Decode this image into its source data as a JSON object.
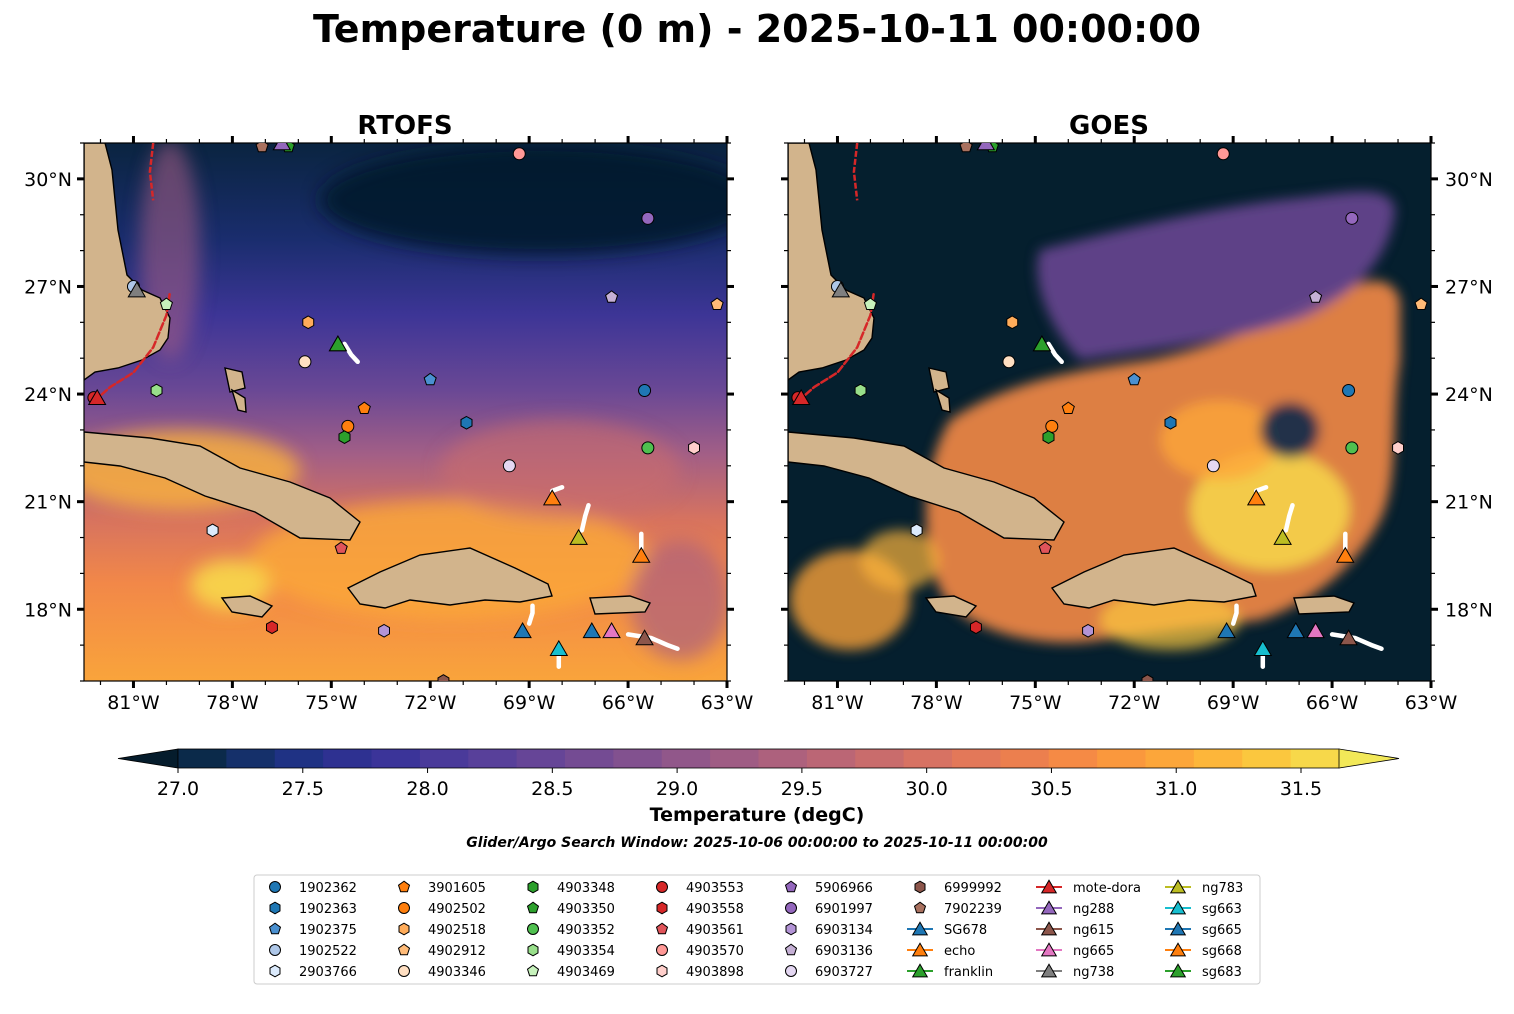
{
  "figure": {
    "title": "Temperature (0 m) - 2025-10-11 00:00:00",
    "search_window": "Glider/Argo Search Window: 2025-10-06 00:00:00 to 2025-10-11 00:00:00"
  },
  "chart_data": {
    "type": "heatmap",
    "title": "Temperature (0 m) - 2025-10-11 00:00:00",
    "panels": [
      {
        "title": "RTOFS"
      },
      {
        "title": "GOES"
      }
    ],
    "xlim": [
      -82.5,
      -63.0
    ],
    "ylim": [
      16.0,
      31.0
    ],
    "x_ticks": [
      -81,
      -78,
      -75,
      -72,
      -69,
      -66,
      -63
    ],
    "x_tick_labels": [
      "81°W",
      "78°W",
      "75°W",
      "72°W",
      "69°W",
      "66°W",
      "63°W"
    ],
    "y_ticks": [
      18,
      21,
      24,
      27,
      30
    ],
    "y_tick_labels": [
      "18°N",
      "21°N",
      "24°N",
      "27°N",
      "30°N"
    ],
    "colorbar": {
      "label": "Temperature (degC)",
      "min": 26.75,
      "max": 31.75,
      "step": 0.25,
      "extend": "both",
      "ticks": [
        27.0,
        27.5,
        28.0,
        28.5,
        29.0,
        29.5,
        30.0,
        30.5,
        31.0,
        31.5
      ],
      "tick_labels": [
        "27.0",
        "27.5",
        "28.0",
        "28.5",
        "29.0",
        "29.5",
        "30.0",
        "30.5",
        "31.0",
        "31.5"
      ],
      "colors": [
        "#051c2c",
        "#0b2a4a",
        "#15306a",
        "#1f3284",
        "#2e3191",
        "#3b3499",
        "#4a3a9a",
        "#58409a",
        "#664597",
        "#744b93",
        "#82518f",
        "#91578a",
        "#9f5c84",
        "#ad617d",
        "#bb6675",
        "#c96c6c",
        "#d77263",
        "#e37859",
        "#ec7f4e",
        "#f58a45",
        "#fa983d",
        "#fca63a",
        "#fdb63a",
        "#fbc73e",
        "#f7d84a",
        "#f2e858"
      ]
    },
    "regions": [
      {
        "panel": 0,
        "x": [
          -82.5,
          -63
        ],
        "y": [
          27.5,
          31
        ],
        "value": 27.0
      },
      {
        "panel": 0,
        "x": [
          -82.5,
          -63
        ],
        "y": [
          23.5,
          27.5
        ],
        "value": 28.6
      },
      {
        "panel": 0,
        "x": [
          -82.5,
          -63
        ],
        "y": [
          19.5,
          23.5
        ],
        "value": 29.7
      },
      {
        "panel": 0,
        "x": [
          -82.5,
          -63
        ],
        "y": [
          16,
          19.5
        ],
        "value": 30.8
      },
      {
        "panel": 1,
        "x": [
          -82.5,
          -63
        ],
        "y": [
          16,
          31
        ],
        "value": 26.9
      },
      {
        "panel": 1,
        "x": [
          -76,
          -66
        ],
        "y": [
          17,
          24
        ],
        "value": 30.9
      },
      {
        "panel": 1,
        "x": [
          -73,
          -64
        ],
        "y": [
          24,
          29
        ],
        "value": 28.7
      }
    ],
    "land_labels": [],
    "argo": [
      {
        "id": "1902362",
        "marker": "circle",
        "color": "#1f77b4",
        "lon": -65.5,
        "lat": 24.1
      },
      {
        "id": "1902363",
        "marker": "hexagon",
        "color": "#1f77b4",
        "lon": -70.9,
        "lat": 23.2
      },
      {
        "id": "1902375",
        "marker": "pentagon",
        "color": "#4a90d0",
        "lon": -72.0,
        "lat": 24.4
      },
      {
        "id": "1902522",
        "marker": "circle",
        "color": "#aec7e8",
        "lon": -81.0,
        "lat": 27.0
      },
      {
        "id": "2903766",
        "marker": "hexagon",
        "color": "#dbeafc",
        "lon": -78.6,
        "lat": 20.2
      },
      {
        "id": "3901605",
        "marker": "pentagon",
        "color": "#ff7f0e",
        "lon": -74.0,
        "lat": 23.6
      },
      {
        "id": "4902502",
        "marker": "circle",
        "color": "#ff7f0e",
        "lon": -74.5,
        "lat": 23.1
      },
      {
        "id": "4902518",
        "marker": "hexagon",
        "color": "#ffac5a",
        "lon": -75.7,
        "lat": 26.0
      },
      {
        "id": "4902912",
        "marker": "pentagon",
        "color": "#ffbb78",
        "lon": -63.3,
        "lat": 26.5
      },
      {
        "id": "4903346",
        "marker": "circle",
        "color": "#ffdfc2",
        "lon": -75.8,
        "lat": 24.9
      },
      {
        "id": "4903348",
        "marker": "hexagon",
        "color": "#2ca02c",
        "lon": -74.6,
        "lat": 22.8
      },
      {
        "id": "4903350",
        "marker": "pentagon",
        "color": "#2ca02c",
        "lon": -76.3,
        "lat": 30.9
      },
      {
        "id": "4903352",
        "marker": "circle",
        "color": "#4fc04f",
        "lon": -65.4,
        "lat": 22.5
      },
      {
        "id": "4903354",
        "marker": "hexagon",
        "color": "#98df8a",
        "lon": -80.3,
        "lat": 24.1
      },
      {
        "id": "4903469",
        "marker": "pentagon",
        "color": "#c7f2bc",
        "lon": -80.0,
        "lat": 26.5
      },
      {
        "id": "4903553",
        "marker": "circle",
        "color": "#d62728",
        "lon": -82.2,
        "lat": 23.9
      },
      {
        "id": "4903558",
        "marker": "hexagon",
        "color": "#d62728",
        "lon": -76.8,
        "lat": 17.5
      },
      {
        "id": "4903561",
        "marker": "pentagon",
        "color": "#e0545a",
        "lon": -74.7,
        "lat": 19.7
      },
      {
        "id": "4903570",
        "marker": "circle",
        "color": "#ff9896",
        "lon": -69.3,
        "lat": 30.7
      },
      {
        "id": "4903898",
        "marker": "hexagon",
        "color": "#ffcfcb",
        "lon": -64.0,
        "lat": 22.5
      },
      {
        "id": "5906966",
        "marker": "pentagon",
        "color": "#9467bd",
        "lon": -76.5,
        "lat": 31.0
      },
      {
        "id": "6901997",
        "marker": "circle",
        "color": "#9467bd",
        "lon": -65.4,
        "lat": 28.9
      },
      {
        "id": "6903134",
        "marker": "hexagon",
        "color": "#b394d6",
        "lon": -73.4,
        "lat": 17.4
      },
      {
        "id": "6903136",
        "marker": "pentagon",
        "color": "#c5b0d5",
        "lon": -66.5,
        "lat": 26.7
      },
      {
        "id": "6903727",
        "marker": "circle",
        "color": "#e4d7f2",
        "lon": -69.6,
        "lat": 22.0
      },
      {
        "id": "6999992",
        "marker": "hexagon",
        "color": "#8c564b",
        "lon": -71.6,
        "lat": 16.0
      },
      {
        "id": "7902239",
        "marker": "pentagon",
        "color": "#a9715f",
        "lon": -77.1,
        "lat": 30.9
      }
    ],
    "gliders": [
      {
        "id": "SG678",
        "color": "#1f77b4",
        "lon": -69.2,
        "lat": 17.4,
        "track": [
          [
            -69.0,
            17.6
          ],
          [
            -68.9,
            17.9
          ],
          [
            -68.9,
            18.1
          ]
        ]
      },
      {
        "id": "echo",
        "color": "#ff7f0e",
        "lon": -65.6,
        "lat": 19.5,
        "track": [
          [
            -65.6,
            19.7
          ],
          [
            -65.6,
            19.9
          ],
          [
            -65.6,
            20.1
          ]
        ]
      },
      {
        "id": "franklin",
        "color": "#2ca02c",
        "lon": -74.8,
        "lat": 25.4,
        "track": [
          [
            -74.6,
            25.4
          ],
          [
            -74.4,
            25.1
          ],
          [
            -74.2,
            24.9
          ]
        ]
      },
      {
        "id": "mote-dora",
        "color": "#d62728",
        "lon": -82.1,
        "lat": 23.9,
        "track": [
          [
            -82.2,
            23.8
          ],
          [
            -81.7,
            24.2
          ],
          [
            -81.0,
            24.6
          ],
          [
            -80.4,
            25.3
          ],
          [
            -80.0,
            26.2
          ],
          [
            -79.9,
            26.8
          ]
        ]
      },
      {
        "id": "ng288",
        "color": "#9467bd",
        "lon": -76.5,
        "lat": 31.0,
        "track": []
      },
      {
        "id": "ng615",
        "color": "#8c564b",
        "lon": -65.5,
        "lat": 17.2,
        "track": [
          [
            -66.0,
            17.3
          ],
          [
            -65.3,
            17.2
          ],
          [
            -64.8,
            17.0
          ],
          [
            -64.5,
            16.9
          ]
        ]
      },
      {
        "id": "ng665",
        "color": "#e377c2",
        "lon": -66.5,
        "lat": 17.4,
        "track": []
      },
      {
        "id": "ng738",
        "color": "#7f7f7f",
        "lon": -80.9,
        "lat": 26.9,
        "track": []
      },
      {
        "id": "ng783",
        "color": "#bcbd22",
        "lon": -67.5,
        "lat": 20.0,
        "track": [
          [
            -67.4,
            20.2
          ],
          [
            -67.3,
            20.6
          ],
          [
            -67.2,
            20.9
          ]
        ]
      },
      {
        "id": "sg663",
        "color": "#17becf",
        "lon": -68.1,
        "lat": 16.9,
        "track": [
          [
            -68.1,
            16.7
          ],
          [
            -68.1,
            16.4
          ]
        ]
      },
      {
        "id": "sg665",
        "color": "#1f77b4",
        "lon": -67.1,
        "lat": 17.4,
        "track": []
      },
      {
        "id": "sg668",
        "color": "#ff7f0e",
        "lon": -68.3,
        "lat": 21.1,
        "track": [
          [
            -68.3,
            21.3
          ],
          [
            -68.0,
            21.4
          ]
        ]
      },
      {
        "id": "sg683",
        "color": "#2ca02c",
        "lon": -74.8,
        "lat": 25.4,
        "track": []
      }
    ],
    "current_track": [
      [
        -80.4,
        31.0
      ],
      [
        -80.5,
        30.2
      ],
      [
        -80.4,
        29.4
      ]
    ]
  },
  "legend": {
    "columns": [
      [
        {
          "label": "1902362",
          "marker": "circle",
          "color": "#1f77b4"
        },
        {
          "label": "1902363",
          "marker": "hexagon",
          "color": "#1f77b4"
        },
        {
          "label": "1902375",
          "marker": "pentagon",
          "color": "#4a90d0"
        },
        {
          "label": "1902522",
          "marker": "circle",
          "color": "#aec7e8"
        },
        {
          "label": "2903766",
          "marker": "hexagon",
          "color": "#dbeafc"
        }
      ],
      [
        {
          "label": "3901605",
          "marker": "pentagon",
          "color": "#ff7f0e"
        },
        {
          "label": "4902502",
          "marker": "circle",
          "color": "#ff7f0e"
        },
        {
          "label": "4902518",
          "marker": "hexagon",
          "color": "#ffac5a"
        },
        {
          "label": "4902912",
          "marker": "pentagon",
          "color": "#ffbb78"
        },
        {
          "label": "4903346",
          "marker": "circle",
          "color": "#ffdfc2"
        }
      ],
      [
        {
          "label": "4903348",
          "marker": "hexagon",
          "color": "#2ca02c"
        },
        {
          "label": "4903350",
          "marker": "pentagon",
          "color": "#2ca02c"
        },
        {
          "label": "4903352",
          "marker": "circle",
          "color": "#4fc04f"
        },
        {
          "label": "4903354",
          "marker": "hexagon",
          "color": "#98df8a"
        },
        {
          "label": "4903469",
          "marker": "pentagon",
          "color": "#c7f2bc"
        }
      ],
      [
        {
          "label": "4903553",
          "marker": "circle",
          "color": "#d62728"
        },
        {
          "label": "4903558",
          "marker": "hexagon",
          "color": "#d62728"
        },
        {
          "label": "4903561",
          "marker": "pentagon",
          "color": "#e0545a"
        },
        {
          "label": "4903570",
          "marker": "circle",
          "color": "#ff9896"
        },
        {
          "label": "4903898",
          "marker": "hexagon",
          "color": "#ffcfcb"
        }
      ],
      [
        {
          "label": "5906966",
          "marker": "pentagon",
          "color": "#9467bd"
        },
        {
          "label": "6901997",
          "marker": "circle",
          "color": "#9467bd"
        },
        {
          "label": "6903134",
          "marker": "hexagon",
          "color": "#b394d6"
        },
        {
          "label": "6903136",
          "marker": "pentagon",
          "color": "#c5b0d5"
        },
        {
          "label": "6903727",
          "marker": "circle",
          "color": "#e4d7f2"
        }
      ],
      [
        {
          "label": "6999992",
          "marker": "hexagon",
          "color": "#8c564b"
        },
        {
          "label": "7902239",
          "marker": "pentagon",
          "color": "#a9715f"
        },
        {
          "label": "SG678",
          "marker": "triangle",
          "color": "#1f77b4"
        },
        {
          "label": "echo",
          "marker": "triangle",
          "color": "#ff7f0e"
        },
        {
          "label": "franklin",
          "marker": "triangle",
          "color": "#2ca02c"
        }
      ],
      [
        {
          "label": "mote-dora",
          "marker": "triangle",
          "color": "#d62728"
        },
        {
          "label": "ng288",
          "marker": "triangle",
          "color": "#9467bd"
        },
        {
          "label": "ng615",
          "marker": "triangle",
          "color": "#8c564b"
        },
        {
          "label": "ng665",
          "marker": "triangle",
          "color": "#e377c2"
        },
        {
          "label": "ng738",
          "marker": "triangle",
          "color": "#7f7f7f"
        }
      ],
      [
        {
          "label": "ng783",
          "marker": "triangle",
          "color": "#bcbd22"
        },
        {
          "label": "sg663",
          "marker": "triangle",
          "color": "#17becf"
        },
        {
          "label": "sg665",
          "marker": "triangle",
          "color": "#1f77b4"
        },
        {
          "label": "sg668",
          "marker": "triangle",
          "color": "#ff7f0e"
        },
        {
          "label": "sg683",
          "marker": "triangle",
          "color": "#2ca02c"
        }
      ]
    ]
  },
  "style": {
    "land_color": "#d2b48c",
    "deep_color": "#051f2e"
  }
}
